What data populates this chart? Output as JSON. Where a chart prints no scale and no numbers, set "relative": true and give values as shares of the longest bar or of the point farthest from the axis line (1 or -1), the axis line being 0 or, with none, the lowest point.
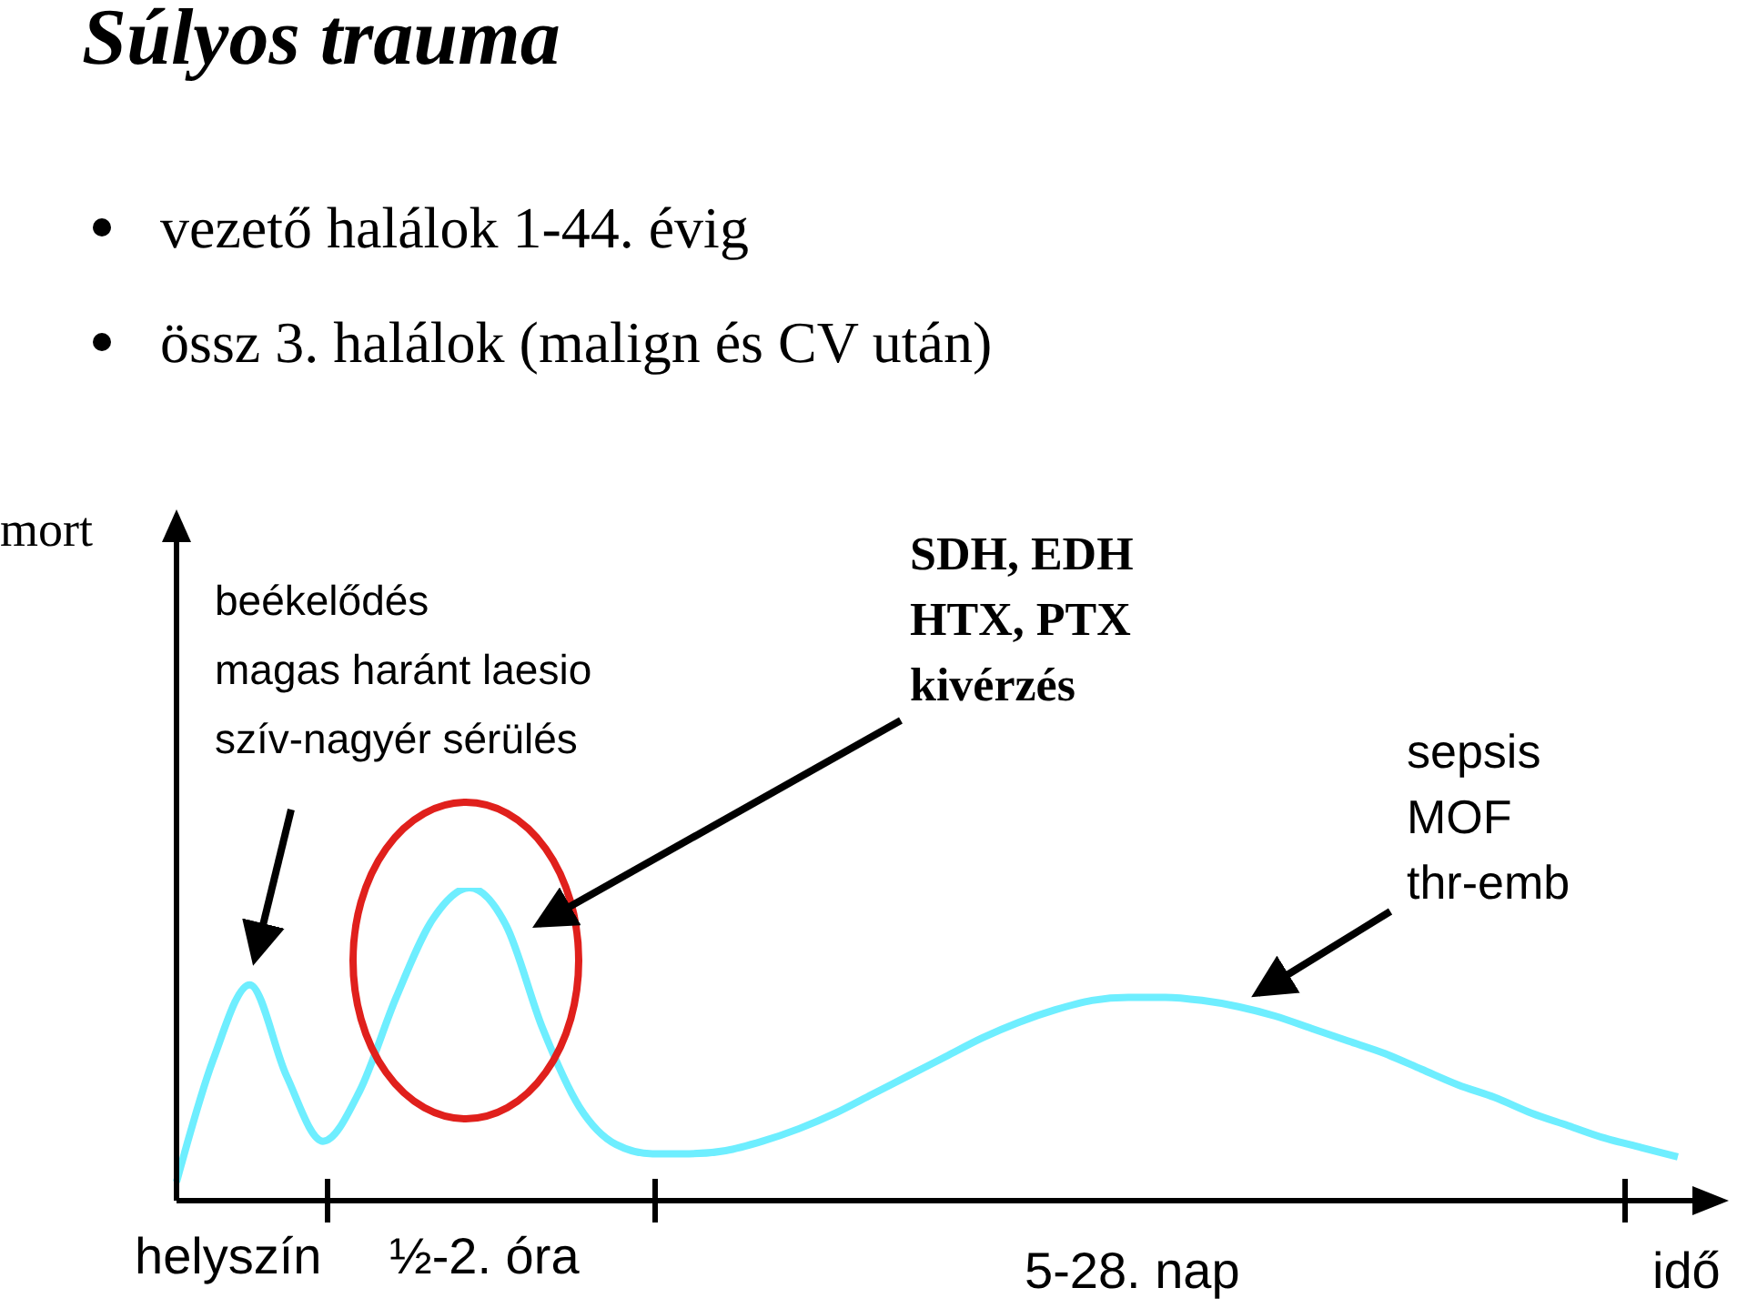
{
  "chart_data": {
    "type": "line",
    "title": "Súlyos trauma",
    "relative": true,
    "xlabel": "idő",
    "grid": false,
    "legend": false,
    "marker": "none",
    "line_style": "solid",
    "annotations": [
      "vezető halálok 1-44. évig",
      "össz 3. halálok (malign és CV után)",
      "beékelődés\nmagas haránt laesio\nszív-nagyér sérülés",
      "SDH, EDH\nHTX, PTX\nkivérzés",
      "sepsis\nMOF\nthr-emb",
      "helyszín",
      "½-2. óra",
      "5-28. nap",
      "mort"
    ],
    "categories": [
      null,
      null,
      null,
      null,
      null,
      null,
      null,
      null,
      null,
      null,
      null,
      null,
      null,
      null,
      null,
      null,
      null,
      null,
      null,
      null,
      null,
      null,
      null,
      null,
      null,
      null,
      null,
      null,
      null,
      null,
      null,
      null,
      null,
      null,
      null,
      null,
      null,
      null,
      null,
      null,
      null,
      null
    ],
    "series": [
      {
        "color": "#6eeeff",
        "values": [
          0.06,
          0.45,
          0.69,
          0.4,
          0.19,
          0.35,
          0.65,
          0.9,
          1.0,
          0.88,
          0.55,
          0.3,
          0.18,
          0.15,
          0.15,
          0.16,
          0.19,
          0.23,
          0.28,
          0.34,
          0.4,
          0.46,
          0.52,
          0.57,
          0.61,
          0.64,
          0.65,
          0.65,
          0.64,
          0.62,
          0.59,
          0.55,
          0.51,
          0.47,
          0.42,
          0.37,
          0.33,
          0.28,
          0.24,
          0.2,
          0.17,
          0.14
        ]
      }
    ]
  }
}
